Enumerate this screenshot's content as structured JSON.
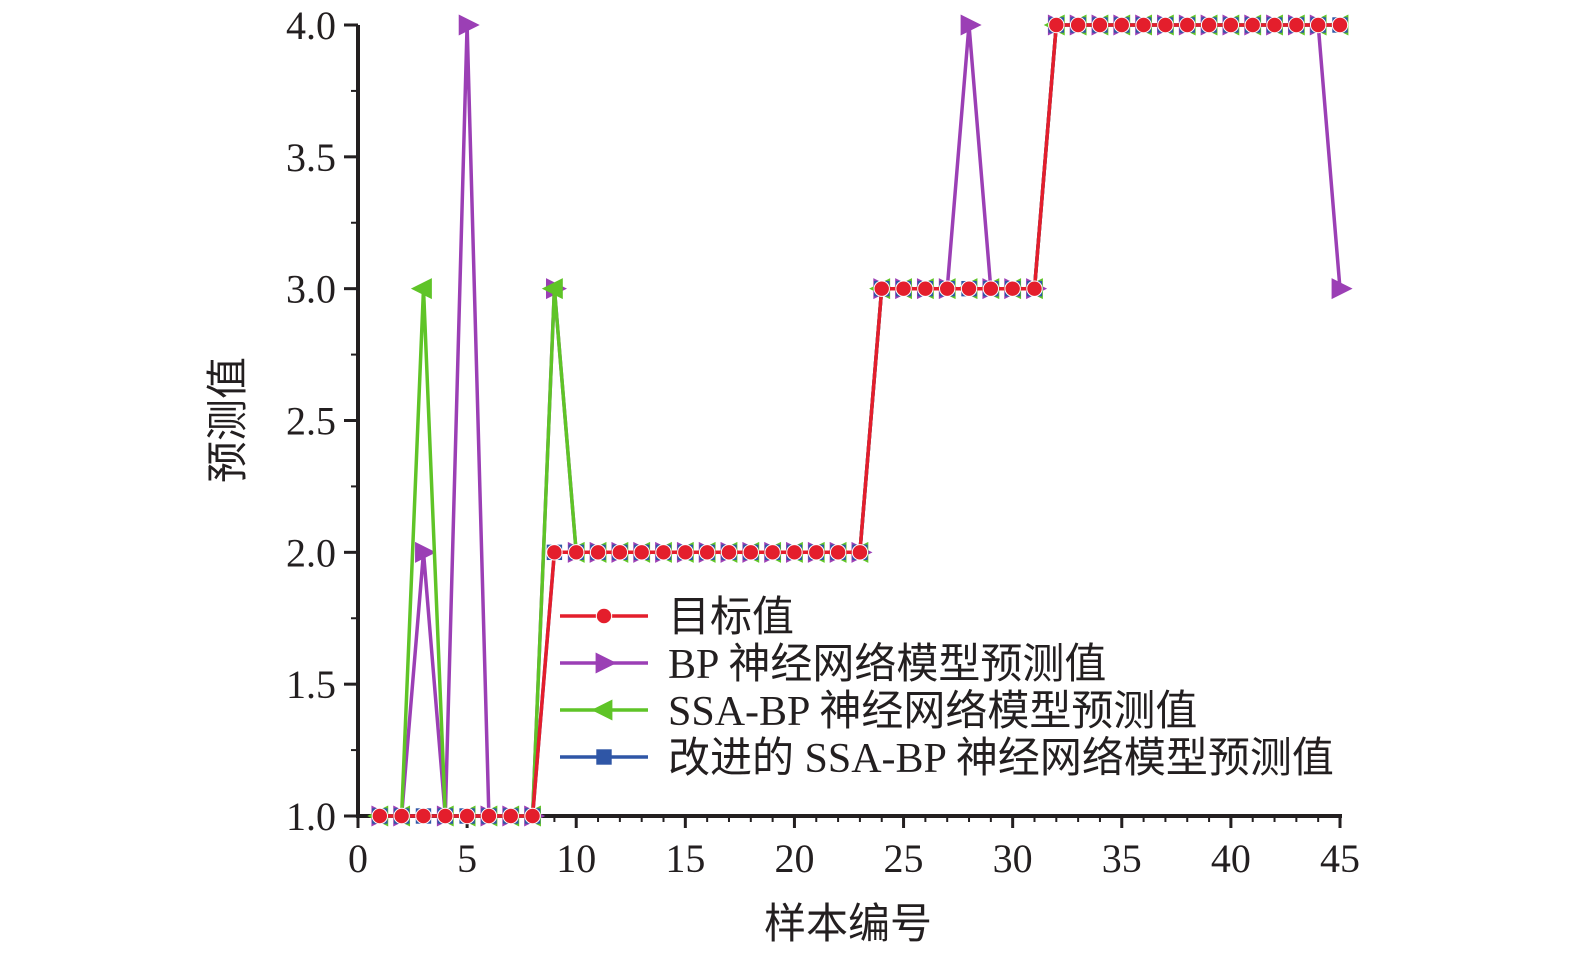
{
  "chart_data": {
    "type": "line",
    "xlabel": "样本编号",
    "ylabel": "预测值",
    "xlim": [
      0,
      45
    ],
    "ylim": [
      1.0,
      4.0
    ],
    "x_ticks": [
      "0",
      "5",
      "10",
      "15",
      "20",
      "25",
      "30",
      "35",
      "40",
      "45"
    ],
    "y_ticks": [
      "1.0",
      "1.5",
      "2.0",
      "2.5",
      "3.0",
      "3.5",
      "4.0"
    ],
    "x_tick_values": [
      0,
      5,
      10,
      15,
      20,
      25,
      30,
      35,
      40,
      45
    ],
    "y_tick_values": [
      1.0,
      1.5,
      2.0,
      2.5,
      3.0,
      3.5,
      4.0
    ],
    "grid": false,
    "legend_position": "lower-right",
    "x": [
      1,
      2,
      3,
      4,
      5,
      6,
      7,
      8,
      9,
      10,
      11,
      12,
      13,
      14,
      15,
      16,
      17,
      18,
      19,
      20,
      21,
      22,
      23,
      24,
      25,
      26,
      27,
      28,
      29,
      30,
      31,
      32,
      33,
      34,
      35,
      36,
      37,
      38,
      39,
      40,
      41,
      42,
      43,
      44,
      45
    ],
    "series": [
      {
        "name": "目标值",
        "color": "#e41e2c",
        "marker": "circle",
        "values": [
          1,
          1,
          1,
          1,
          1,
          1,
          1,
          1,
          2,
          2,
          2,
          2,
          2,
          2,
          2,
          2,
          2,
          2,
          2,
          2,
          2,
          2,
          2,
          3,
          3,
          3,
          3,
          3,
          3,
          3,
          3,
          4,
          4,
          4,
          4,
          4,
          4,
          4,
          4,
          4,
          4,
          4,
          4,
          4,
          4
        ]
      },
      {
        "name": "BP 神经网络模型预测值",
        "color": "#9b3fb5",
        "marker": "triangle-right",
        "values": [
          1,
          1,
          2,
          1,
          4,
          1,
          1,
          1,
          3,
          2,
          2,
          2,
          2,
          2,
          2,
          2,
          2,
          2,
          2,
          2,
          2,
          2,
          2,
          3,
          3,
          3,
          3,
          4,
          3,
          3,
          3,
          4,
          4,
          4,
          4,
          4,
          4,
          4,
          4,
          4,
          4,
          4,
          4,
          4,
          3
        ]
      },
      {
        "name": "SSA-BP 神经网络模型预测值",
        "color": "#5fc427",
        "marker": "triangle-left",
        "values": [
          1,
          1,
          3,
          1,
          1,
          1,
          1,
          1,
          3,
          2,
          2,
          2,
          2,
          2,
          2,
          2,
          2,
          2,
          2,
          2,
          2,
          2,
          2,
          3,
          3,
          3,
          3,
          3,
          3,
          3,
          3,
          4,
          4,
          4,
          4,
          4,
          4,
          4,
          4,
          4,
          4,
          4,
          4,
          4,
          4
        ]
      },
      {
        "name": "改进的 SSA-BP 神经网络模型预测值",
        "color": "#2f56a6",
        "marker": "square",
        "values": [
          1,
          1,
          1,
          1,
          1,
          1,
          1,
          1,
          2,
          2,
          2,
          2,
          2,
          2,
          2,
          2,
          2,
          2,
          2,
          2,
          2,
          2,
          2,
          3,
          3,
          3,
          3,
          3,
          3,
          3,
          3,
          4,
          4,
          4,
          4,
          4,
          4,
          4,
          4,
          4,
          4,
          4,
          4,
          4,
          4
        ]
      }
    ]
  }
}
